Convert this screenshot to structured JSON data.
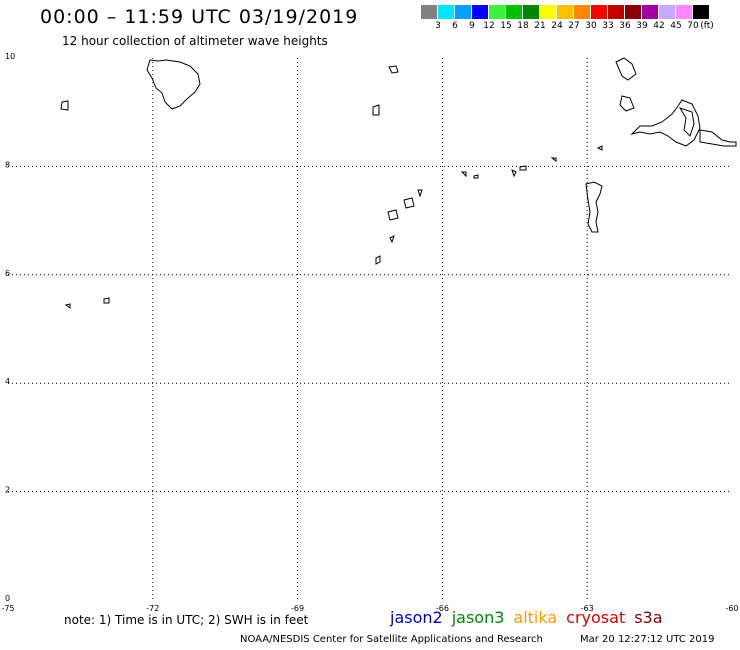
{
  "header": {
    "title": "00:00 – 11:59 UTC 03/19/2019",
    "subtitle": "12 hour collection of altimeter wave heights"
  },
  "legend": {
    "unit": "(ft)",
    "bins": [
      {
        "label": "3",
        "color": "#808080"
      },
      {
        "label": "6",
        "color": "#00e5ff"
      },
      {
        "label": "9",
        "color": "#00a0ff"
      },
      {
        "label": "12",
        "color": "#0000ff"
      },
      {
        "label": "15",
        "color": "#40f040"
      },
      {
        "label": "18",
        "color": "#00c000"
      },
      {
        "label": "21",
        "color": "#008800"
      },
      {
        "label": "24",
        "color": "#ffff00"
      },
      {
        "label": "27",
        "color": "#ffc000"
      },
      {
        "label": "30",
        "color": "#ff8800"
      },
      {
        "label": "33",
        "color": "#ff0000"
      },
      {
        "label": "36",
        "color": "#c00000"
      },
      {
        "label": "39",
        "color": "#880000"
      },
      {
        "label": "42",
        "color": "#a000a0"
      },
      {
        "label": "45",
        "color": "#c8a8ff"
      },
      {
        "label": "70",
        "color": "#ff88ff"
      },
      {
        "label": "",
        "color": "#000000"
      }
    ]
  },
  "map": {
    "lon_range": [
      -75,
      -60
    ],
    "lat_range": [
      0,
      10
    ],
    "lon_grid": [
      -72,
      -69,
      -66,
      -63
    ],
    "lat_grid": [
      2,
      4,
      6,
      8
    ],
    "lon_labels": [
      "-75",
      "-72",
      "-69",
      "-66",
      "-63",
      "-60"
    ],
    "lat_labels": [
      "0",
      "2",
      "4",
      "6",
      "8",
      "10"
    ]
  },
  "footer": {
    "note": "note: 1) Time is in UTC; 2) SWH is in feet",
    "satellites": [
      {
        "name": "jason2",
        "color": "#0000cc"
      },
      {
        "name": "jason3",
        "color": "#008800"
      },
      {
        "name": "altika",
        "color": "#ff9900"
      },
      {
        "name": "cryosat",
        "color": "#dd0000"
      },
      {
        "name": "s3a",
        "color": "#880000"
      }
    ],
    "credit": "NOAA/NESDIS Center for Satellite Applications and Research",
    "timestamp": "Mar 20 12:27:12 UTC 2019"
  }
}
